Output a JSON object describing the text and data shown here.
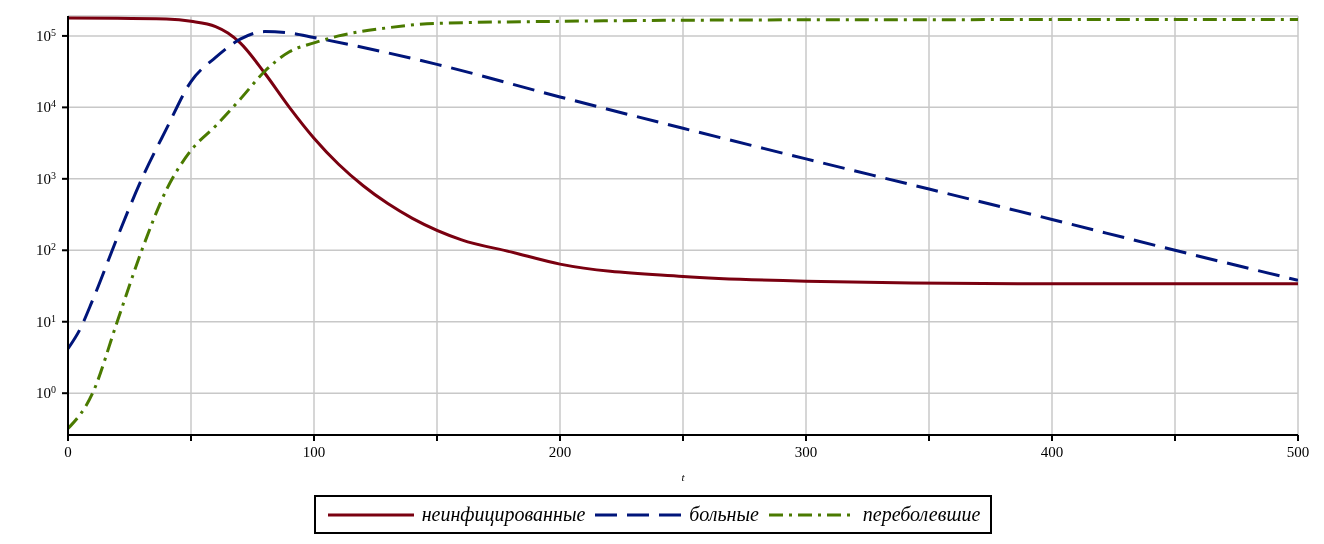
{
  "chart_data": {
    "type": "line",
    "xlabel": "t",
    "legend": "bottom",
    "grid": true,
    "log": "y",
    "xlim": [
      0,
      500
    ],
    "xticks": [
      0,
      {
        "value": 50,
        "label": null
      },
      100,
      {
        "value": 150,
        "label": null
      },
      200,
      {
        "value": 250,
        "label": null
      },
      300,
      {
        "value": 350,
        "label": null
      },
      400,
      {
        "value": 450,
        "label": null
      },
      500
    ],
    "ylim": [
      0.26,
      190000
    ],
    "yticks": [
      {
        "value": 1,
        "label": "10$^{0}$"
      },
      {
        "value": 10,
        "label": "10$^{1}$"
      },
      {
        "value": 100,
        "label": "10$^{2}$"
      },
      {
        "value": 1000,
        "label": "10$^{3}$"
      },
      {
        "value": 10000,
        "label": "10$^{4}$"
      },
      {
        "value": 100000,
        "label": "10$^{5}$"
      }
    ],
    "series": [
      {
        "name": "неинфицированные",
        "color": "#7a0010",
        "line_style": "solid",
        "x": [
          0,
          20,
          40,
          50,
          60,
          65,
          70,
          80,
          90,
          100,
          110,
          120,
          130,
          140,
          160,
          180,
          200,
          250,
          300,
          400,
          500
        ],
        "values": [
          178000,
          177000,
          172000,
          160000,
          135000,
          110000,
          80000,
          30000,
          10000,
          3700,
          1600,
          800,
          450,
          280,
          140,
          95,
          64,
          43,
          37,
          34,
          34
        ]
      },
      {
        "name": "больные",
        "color": "#00157a",
        "line_style": "dashed",
        "x": [
          0,
          5,
          10,
          20,
          30,
          40,
          50,
          60,
          70,
          80,
          90,
          100,
          150,
          200,
          250,
          300,
          350,
          400,
          450,
          500
        ],
        "values": [
          4.2,
          8,
          20,
          150,
          1000,
          5000,
          23000,
          50000,
          90000,
          115000,
          110000,
          95000,
          40000,
          14000,
          5100,
          1900,
          720,
          270,
          100,
          38
        ]
      },
      {
        "name": "переболевшие",
        "color": "#4a7a00",
        "line_style": "dashdot",
        "x": [
          0,
          10,
          20,
          30,
          40,
          50,
          60,
          70,
          80,
          90,
          100,
          110,
          130,
          150,
          200,
          300,
          500
        ],
        "values": [
          0.32,
          1,
          10,
          100,
          700,
          2500,
          5500,
          13000,
          32000,
          60000,
          80000,
          100000,
          130000,
          150000,
          160000,
          168000,
          170000
        ]
      }
    ]
  }
}
